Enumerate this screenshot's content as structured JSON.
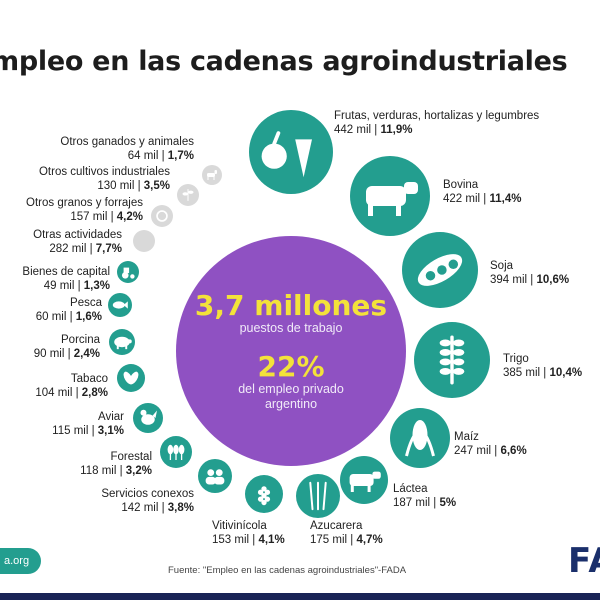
{
  "title": "mpleo en las cadenas agroindustriales",
  "center": {
    "main_value": "3,7 millones",
    "main_label": "puestos de trabajo",
    "share_value": "22%",
    "share_label_1": "del empleo privado",
    "share_label_2": "argentino"
  },
  "source": "Fuente: \"Empleo en las cadenas agroindustriales\"-FADA",
  "website": "a.org",
  "logo": "FA",
  "colors": {
    "teal": "#239e8f",
    "grey": "#d9d9d9",
    "purple": "#8f51c2",
    "yellow": "#f3e23a",
    "navy": "#1a2f6b"
  },
  "chart_data": {
    "type": "bubble",
    "title": "mpleo en las cadenas agroindustriales",
    "unit": "mil",
    "total": "3,7 millones",
    "share": "22%",
    "items": [
      {
        "name": "Frutas, verduras, hortalizas y legumbres",
        "value_text": "442 mil",
        "pct_text": "11,9%",
        "value": 442,
        "pct": 11.9,
        "icon": "fruit-vegetables-icon",
        "style": "teal"
      },
      {
        "name": "Bovina",
        "value_text": "422 mil",
        "pct_text": "11,4%",
        "value": 422,
        "pct": 11.4,
        "icon": "cow-icon",
        "style": "teal"
      },
      {
        "name": "Soja",
        "value_text": "394 mil",
        "pct_text": "10,6%",
        "value": 394,
        "pct": 10.6,
        "icon": "soybean-icon",
        "style": "teal"
      },
      {
        "name": "Trigo",
        "value_text": "385 mil",
        "pct_text": "10,4%",
        "value": 385,
        "pct": 10.4,
        "icon": "wheat-icon",
        "style": "teal"
      },
      {
        "name": "Maíz",
        "value_text": "247 mil",
        "pct_text": "6,6%",
        "value": 247,
        "pct": 6.6,
        "icon": "corn-icon",
        "style": "teal"
      },
      {
        "name": "Láctea",
        "value_text": "187 mil",
        "pct_text": "5%",
        "value": 187,
        "pct": 5,
        "icon": "dairy-cow-icon",
        "style": "teal"
      },
      {
        "name": "Azucarera",
        "value_text": "175 mil",
        "pct_text": "4,7%",
        "value": 175,
        "pct": 4.7,
        "icon": "sugarcane-icon",
        "style": "teal"
      },
      {
        "name": "Vitivinícola",
        "value_text": "153 mil",
        "pct_text": "4,1%",
        "value": 153,
        "pct": 4.1,
        "icon": "grapes-icon",
        "style": "teal"
      },
      {
        "name": "Servicios conexos",
        "value_text": "142 mil",
        "pct_text": "3,8%",
        "value": 142,
        "pct": 3.8,
        "icon": "people-icon",
        "style": "teal"
      },
      {
        "name": "Forestal",
        "value_text": "118 mil",
        "pct_text": "3,2%",
        "value": 118,
        "pct": 3.2,
        "icon": "trees-icon",
        "style": "teal"
      },
      {
        "name": "Aviar",
        "value_text": "115 mil",
        "pct_text": "3,1%",
        "value": 115,
        "pct": 3.1,
        "icon": "chicken-icon",
        "style": "teal"
      },
      {
        "name": "Tabaco",
        "value_text": "104 mil",
        "pct_text": "2,8%",
        "value": 104,
        "pct": 2.8,
        "icon": "tobacco-leaf-icon",
        "style": "teal"
      },
      {
        "name": "Porcina",
        "value_text": "90 mil",
        "pct_text": "2,4%",
        "value": 90,
        "pct": 2.4,
        "icon": "pig-icon",
        "style": "teal"
      },
      {
        "name": "Pesca",
        "value_text": "60 mil",
        "pct_text": "1,6%",
        "value": 60,
        "pct": 1.6,
        "icon": "fish-icon",
        "style": "teal"
      },
      {
        "name": "Bienes de capital",
        "value_text": "49 mil",
        "pct_text": "1,3%",
        "value": 49,
        "pct": 1.3,
        "icon": "tractor-icon",
        "style": "teal"
      },
      {
        "name": "Otras actividades",
        "value_text": "282 mil",
        "pct_text": "7,7%",
        "value": 282,
        "pct": 7.7,
        "icon": "none",
        "style": "grey"
      },
      {
        "name": "Otros granos y forrajes",
        "value_text": "157 mil",
        "pct_text": "4,2%",
        "value": 157,
        "pct": 4.2,
        "icon": "grain-icon",
        "style": "grey"
      },
      {
        "name": "Otros cultivos industriales",
        "value_text": "130 mil",
        "pct_text": "3,5%",
        "value": 130,
        "pct": 3.5,
        "icon": "crop-icon",
        "style": "grey"
      },
      {
        "name": "Otros ganados y animales",
        "value_text": "64 mil",
        "pct_text": "1,7%",
        "value": 64,
        "pct": 1.7,
        "icon": "goat-icon",
        "style": "grey"
      }
    ]
  }
}
